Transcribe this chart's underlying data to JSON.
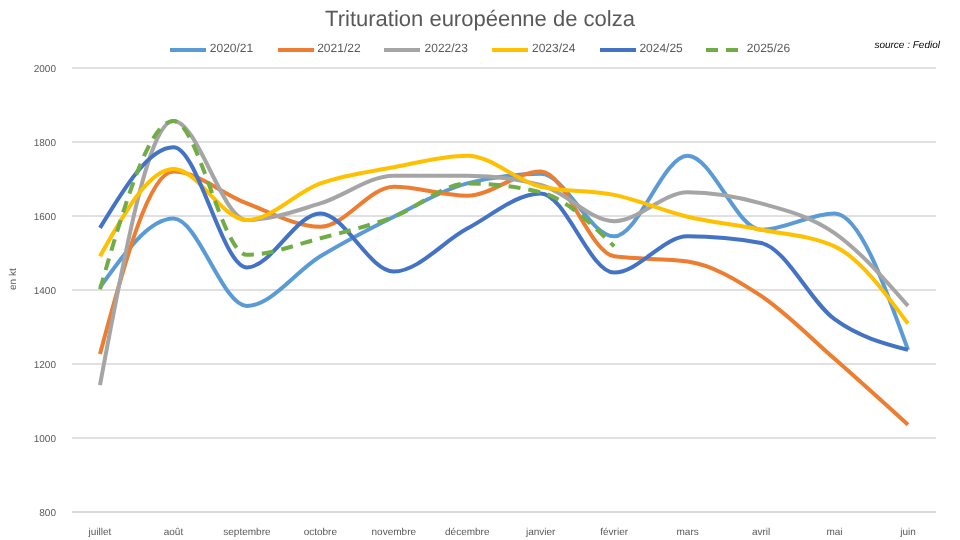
{
  "chart_data": {
    "type": "line",
    "title": "Trituration européenne de colza",
    "ylabel": "en kt",
    "annotations": [
      "source : Fediol"
    ],
    "categories": [
      "juillet",
      "août",
      "septembre",
      "octobre",
      "novembre",
      "décembre",
      "janvier",
      "février",
      "mars",
      "avril",
      "mai",
      "juin"
    ],
    "series": [
      {
        "name": "2020/21",
        "color": "#5b9bd5",
        "values": [
          1407,
          1593,
          1357,
          1491,
          1598,
          1688,
          1714,
          1545,
          1763,
          1563,
          1607,
          1238
        ]
      },
      {
        "name": "2021/22",
        "color": "#ed7d31",
        "values": [
          1227,
          1720,
          1634,
          1571,
          1679,
          1655,
          1720,
          1491,
          1477,
          1384,
          1214,
          1036
        ]
      },
      {
        "name": "2022/23",
        "color": "#a5a5a5",
        "values": [
          1143,
          1857,
          1589,
          1634,
          1709,
          1709,
          1684,
          1586,
          1664,
          1634,
          1554,
          1357
        ]
      },
      {
        "name": "2023/24",
        "color": "#ffc000",
        "values": [
          1491,
          1727,
          1589,
          1688,
          1732,
          1763,
          1679,
          1657,
          1598,
          1563,
          1518,
          1309
        ]
      },
      {
        "name": "2024/25",
        "color": "#4472c4",
        "values": [
          1568,
          1786,
          1461,
          1607,
          1450,
          1566,
          1661,
          1447,
          1545,
          1527,
          1321,
          1238
        ]
      },
      {
        "name": "2025/26",
        "color": "#70ad47",
        "line_style": "dashed",
        "values": [
          1402,
          1857,
          1495,
          1540,
          1598,
          1688,
          1664,
          1518,
          null,
          null,
          null,
          null
        ]
      }
    ],
    "ylim": [
      800,
      2000
    ],
    "yticks": [
      800,
      1000,
      1200,
      1400,
      1600,
      1800,
      2000
    ],
    "grid": "y",
    "legend": "top",
    "marker": "none",
    "line_style": "solid"
  }
}
